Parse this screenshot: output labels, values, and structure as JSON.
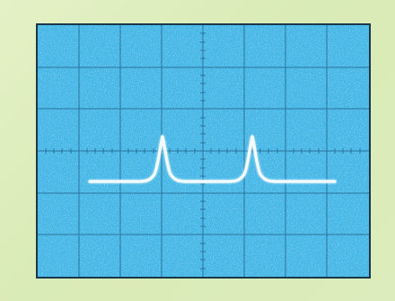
{
  "scene": {
    "subject": "oscilloscope-trace",
    "screen_color": "#46b7e6",
    "trace_color": "#f4fbff",
    "grid_color": "#1d5e86",
    "frame_gradient": [
      "#e4f1c6",
      "#d9ebb6"
    ],
    "grid_divisions": {
      "x": 8,
      "y": 6
    },
    "peaks": 2
  }
}
